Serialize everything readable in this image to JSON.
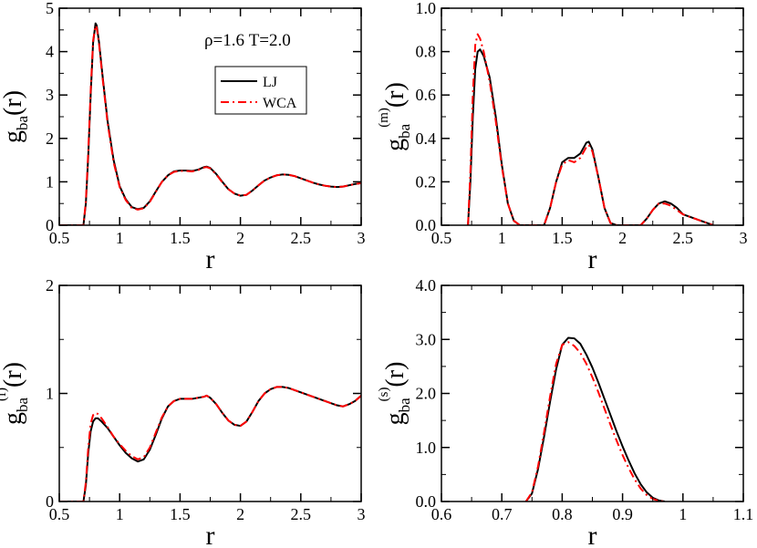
{
  "colors": {
    "lj": "#000000",
    "wca": "#ff0000",
    "frame": "#000000",
    "background": "#ffffff"
  },
  "legend": {
    "entries": [
      "LJ",
      "WCA"
    ],
    "placement": "top-right, panel 1"
  },
  "annotation": {
    "text": "ρ=1.6   T=2.0"
  },
  "chart_data": [
    {
      "type": "line",
      "panel": "top-left",
      "ylabel": {
        "base": "g",
        "sub": "ba",
        "sup": "",
        "arg": "(r)"
      },
      "xlabel": "r",
      "xlim": [
        0.5,
        3
      ],
      "ylim": [
        0,
        5
      ],
      "xticks": [
        0.5,
        1,
        1.5,
        2,
        2.5,
        3
      ],
      "xtick_labels": [
        "0.5",
        "1",
        "1.5",
        "2",
        "2.5",
        "3"
      ],
      "yticks": [
        0,
        1,
        2,
        3,
        4,
        5
      ],
      "ytick_labels": [
        "0",
        "1",
        "2",
        "3",
        "4",
        "5"
      ],
      "series": [
        {
          "name": "LJ",
          "style": "solid",
          "x": [
            0.5,
            0.7,
            0.72,
            0.74,
            0.76,
            0.78,
            0.8,
            0.81,
            0.83,
            0.86,
            0.9,
            0.95,
            1.0,
            1.05,
            1.1,
            1.15,
            1.2,
            1.25,
            1.3,
            1.35,
            1.4,
            1.45,
            1.5,
            1.55,
            1.6,
            1.65,
            1.7,
            1.72,
            1.75,
            1.8,
            1.85,
            1.9,
            1.95,
            2.0,
            2.05,
            2.1,
            2.15,
            2.2,
            2.25,
            2.3,
            2.35,
            2.4,
            2.45,
            2.5,
            2.55,
            2.6,
            2.65,
            2.7,
            2.75,
            2.8,
            2.85,
            2.9,
            2.95,
            3.0
          ],
          "y": [
            0,
            0,
            0.5,
            1.6,
            3.0,
            4.2,
            4.65,
            4.6,
            4.2,
            3.4,
            2.4,
            1.5,
            0.9,
            0.6,
            0.42,
            0.37,
            0.4,
            0.55,
            0.78,
            1.0,
            1.15,
            1.24,
            1.26,
            1.26,
            1.25,
            1.28,
            1.34,
            1.35,
            1.32,
            1.18,
            1.0,
            0.83,
            0.73,
            0.68,
            0.7,
            0.8,
            0.92,
            1.03,
            1.1,
            1.15,
            1.17,
            1.16,
            1.13,
            1.08,
            1.03,
            0.98,
            0.94,
            0.91,
            0.89,
            0.88,
            0.89,
            0.92,
            0.95,
            0.97
          ]
        },
        {
          "name": "WCA",
          "style": "dashed",
          "x": [
            0.5,
            0.7,
            0.72,
            0.74,
            0.76,
            0.78,
            0.8,
            0.81,
            0.83,
            0.86,
            0.9,
            0.95,
            1.0,
            1.05,
            1.1,
            1.15,
            1.2,
            1.25,
            1.3,
            1.35,
            1.4,
            1.45,
            1.5,
            1.55,
            1.6,
            1.65,
            1.7,
            1.72,
            1.75,
            1.8,
            1.85,
            1.9,
            1.95,
            2.0,
            2.05,
            2.1,
            2.15,
            2.2,
            2.25,
            2.3,
            2.35,
            2.4,
            2.45,
            2.5,
            2.55,
            2.6,
            2.65,
            2.7,
            2.75,
            2.8,
            2.85,
            2.9,
            2.95,
            3.0
          ],
          "y": [
            0,
            0,
            0.55,
            1.7,
            3.1,
            4.25,
            4.6,
            4.55,
            4.15,
            3.35,
            2.35,
            1.45,
            0.88,
            0.58,
            0.4,
            0.36,
            0.39,
            0.54,
            0.77,
            1.0,
            1.15,
            1.23,
            1.25,
            1.25,
            1.24,
            1.27,
            1.33,
            1.34,
            1.31,
            1.17,
            0.99,
            0.83,
            0.73,
            0.68,
            0.7,
            0.8,
            0.92,
            1.03,
            1.1,
            1.15,
            1.17,
            1.16,
            1.13,
            1.08,
            1.03,
            0.98,
            0.94,
            0.91,
            0.89,
            0.88,
            0.89,
            0.92,
            0.95,
            0.97
          ]
        }
      ]
    },
    {
      "type": "line",
      "panel": "top-right",
      "ylabel": {
        "base": "g",
        "sub": "ba",
        "sup": "(m)",
        "arg": "(r)"
      },
      "xlabel": "r",
      "xlim": [
        0.5,
        3
      ],
      "ylim": [
        0,
        1
      ],
      "xticks": [
        0.5,
        1,
        1.5,
        2,
        2.5,
        3
      ],
      "xtick_labels": [
        "0.5",
        "1",
        "1.5",
        "2",
        "2.5",
        "3"
      ],
      "yticks": [
        0,
        0.2,
        0.4,
        0.6,
        0.8,
        1.0
      ],
      "ytick_labels": [
        "0.0",
        "0.2",
        "0.4",
        "0.6",
        "0.8",
        "1.0"
      ],
      "series": [
        {
          "name": "LJ",
          "style": "solid",
          "x": [
            0.72,
            0.74,
            0.76,
            0.78,
            0.8,
            0.82,
            0.85,
            0.9,
            0.95,
            1.0,
            1.05,
            1.1,
            1.15,
            1.35,
            1.4,
            1.45,
            1.5,
            1.55,
            1.6,
            1.65,
            1.7,
            1.72,
            1.75,
            1.8,
            1.85,
            1.9,
            1.95,
            2.15,
            2.2,
            2.25,
            2.3,
            2.35,
            2.4,
            2.45,
            2.5,
            2.6,
            2.7,
            2.75
          ],
          "y": [
            0,
            0.2,
            0.5,
            0.72,
            0.8,
            0.81,
            0.78,
            0.68,
            0.5,
            0.28,
            0.1,
            0.02,
            0,
            0,
            0.08,
            0.2,
            0.29,
            0.31,
            0.31,
            0.33,
            0.38,
            0.385,
            0.35,
            0.22,
            0.08,
            0.01,
            0,
            0,
            0.03,
            0.07,
            0.1,
            0.11,
            0.1,
            0.08,
            0.05,
            0.03,
            0.01,
            0
          ]
        },
        {
          "name": "WCA",
          "style": "dashed",
          "x": [
            0.72,
            0.74,
            0.76,
            0.78,
            0.8,
            0.82,
            0.85,
            0.9,
            0.95,
            1.0,
            1.05,
            1.1,
            1.15,
            1.35,
            1.4,
            1.45,
            1.5,
            1.55,
            1.6,
            1.65,
            1.7,
            1.72,
            1.75,
            1.8,
            1.85,
            1.9,
            1.95,
            2.15,
            2.2,
            2.25,
            2.3,
            2.35,
            2.4,
            2.45,
            2.5,
            2.6,
            2.7,
            2.75
          ],
          "y": [
            0,
            0.25,
            0.6,
            0.83,
            0.88,
            0.86,
            0.8,
            0.66,
            0.48,
            0.27,
            0.1,
            0.02,
            0,
            0,
            0.08,
            0.2,
            0.28,
            0.3,
            0.29,
            0.31,
            0.36,
            0.37,
            0.34,
            0.22,
            0.08,
            0.01,
            0,
            0,
            0.03,
            0.07,
            0.1,
            0.1,
            0.09,
            0.07,
            0.05,
            0.03,
            0.01,
            0
          ]
        }
      ]
    },
    {
      "type": "line",
      "panel": "bottom-left",
      "ylabel": {
        "base": "g",
        "sub": "ba",
        "sup": "(f)",
        "arg": "(r)"
      },
      "xlabel": "r",
      "xlim": [
        0.5,
        3
      ],
      "ylim": [
        0,
        2
      ],
      "xticks": [
        0.5,
        1,
        1.5,
        2,
        2.5,
        3
      ],
      "xtick_labels": [
        "0.5",
        "1",
        "1.5",
        "2",
        "2.5",
        "3"
      ],
      "yticks": [
        0,
        1,
        2
      ],
      "ytick_labels": [
        "0",
        "1",
        "2"
      ],
      "series": [
        {
          "name": "LJ",
          "style": "solid",
          "x": [
            0.5,
            0.7,
            0.72,
            0.74,
            0.76,
            0.78,
            0.8,
            0.82,
            0.85,
            0.9,
            0.95,
            1.0,
            1.05,
            1.1,
            1.15,
            1.2,
            1.25,
            1.3,
            1.35,
            1.4,
            1.45,
            1.5,
            1.55,
            1.6,
            1.65,
            1.7,
            1.72,
            1.75,
            1.8,
            1.85,
            1.9,
            1.95,
            2.0,
            2.05,
            2.1,
            2.15,
            2.2,
            2.25,
            2.3,
            2.35,
            2.4,
            2.45,
            2.5,
            2.55,
            2.6,
            2.65,
            2.7,
            2.75,
            2.8,
            2.85,
            2.9,
            2.95,
            3.0
          ],
          "y": [
            0,
            0,
            0.15,
            0.45,
            0.65,
            0.74,
            0.77,
            0.77,
            0.74,
            0.68,
            0.6,
            0.52,
            0.45,
            0.4,
            0.37,
            0.39,
            0.48,
            0.62,
            0.77,
            0.88,
            0.93,
            0.95,
            0.95,
            0.95,
            0.96,
            0.97,
            0.98,
            0.96,
            0.9,
            0.82,
            0.75,
            0.71,
            0.7,
            0.74,
            0.83,
            0.93,
            1.0,
            1.04,
            1.06,
            1.06,
            1.05,
            1.03,
            1.01,
            0.99,
            0.97,
            0.95,
            0.93,
            0.91,
            0.89,
            0.88,
            0.9,
            0.93,
            0.98
          ]
        },
        {
          "name": "WCA",
          "style": "dashed",
          "x": [
            0.5,
            0.7,
            0.72,
            0.74,
            0.76,
            0.78,
            0.8,
            0.82,
            0.85,
            0.9,
            0.95,
            1.0,
            1.05,
            1.1,
            1.15,
            1.2,
            1.25,
            1.3,
            1.35,
            1.4,
            1.45,
            1.5,
            1.55,
            1.6,
            1.65,
            1.7,
            1.72,
            1.75,
            1.8,
            1.85,
            1.9,
            1.95,
            2.0,
            2.05,
            2.1,
            2.15,
            2.2,
            2.25,
            2.3,
            2.35,
            2.4,
            2.45,
            2.5,
            2.55,
            2.6,
            2.65,
            2.7,
            2.75,
            2.8,
            2.85,
            2.9,
            2.95,
            3.0
          ],
          "y": [
            0,
            0,
            0.18,
            0.5,
            0.72,
            0.8,
            0.82,
            0.81,
            0.77,
            0.69,
            0.6,
            0.53,
            0.47,
            0.42,
            0.39,
            0.41,
            0.5,
            0.64,
            0.78,
            0.88,
            0.93,
            0.95,
            0.95,
            0.95,
            0.96,
            0.97,
            0.98,
            0.96,
            0.9,
            0.82,
            0.75,
            0.71,
            0.7,
            0.74,
            0.83,
            0.93,
            1.0,
            1.04,
            1.06,
            1.06,
            1.05,
            1.03,
            1.01,
            0.99,
            0.97,
            0.95,
            0.93,
            0.91,
            0.89,
            0.88,
            0.9,
            0.93,
            0.98
          ]
        }
      ]
    },
    {
      "type": "line",
      "panel": "bottom-right",
      "ylabel": {
        "base": "g",
        "sub": "ba",
        "sup": "(s)",
        "arg": "(r)"
      },
      "xlabel": "r",
      "xlim": [
        0.6,
        1.1
      ],
      "ylim": [
        0,
        4
      ],
      "xticks": [
        0.6,
        0.7,
        0.8,
        0.9,
        1.0,
        1.1
      ],
      "xtick_labels": [
        "0.6",
        "0.7",
        "0.8",
        "0.9",
        "1",
        "1.1"
      ],
      "yticks": [
        0,
        1,
        2,
        3,
        4
      ],
      "ytick_labels": [
        "0.0",
        "1.0",
        "2.0",
        "3.0",
        "4.0"
      ],
      "series": [
        {
          "name": "LJ",
          "style": "solid",
          "x": [
            0.74,
            0.75,
            0.76,
            0.77,
            0.78,
            0.79,
            0.8,
            0.81,
            0.82,
            0.83,
            0.84,
            0.85,
            0.86,
            0.87,
            0.88,
            0.89,
            0.9,
            0.91,
            0.92,
            0.93,
            0.94,
            0.95,
            0.96,
            0.97
          ],
          "y": [
            0,
            0.15,
            0.6,
            1.2,
            1.85,
            2.45,
            2.9,
            3.03,
            3.02,
            2.92,
            2.72,
            2.48,
            2.2,
            1.9,
            1.6,
            1.3,
            1.02,
            0.76,
            0.52,
            0.32,
            0.17,
            0.07,
            0.02,
            0
          ]
        },
        {
          "name": "WCA",
          "style": "dashed",
          "x": [
            0.74,
            0.75,
            0.76,
            0.77,
            0.78,
            0.79,
            0.8,
            0.81,
            0.82,
            0.83,
            0.84,
            0.85,
            0.86,
            0.87,
            0.88,
            0.89,
            0.9,
            0.91,
            0.92,
            0.93,
            0.94,
            0.95,
            0.96,
            0.97
          ],
          "y": [
            0,
            0.17,
            0.65,
            1.28,
            1.95,
            2.55,
            2.9,
            2.95,
            2.88,
            2.75,
            2.55,
            2.3,
            2.02,
            1.72,
            1.42,
            1.13,
            0.86,
            0.62,
            0.41,
            0.24,
            0.12,
            0.05,
            0.01,
            0
          ]
        }
      ]
    }
  ]
}
